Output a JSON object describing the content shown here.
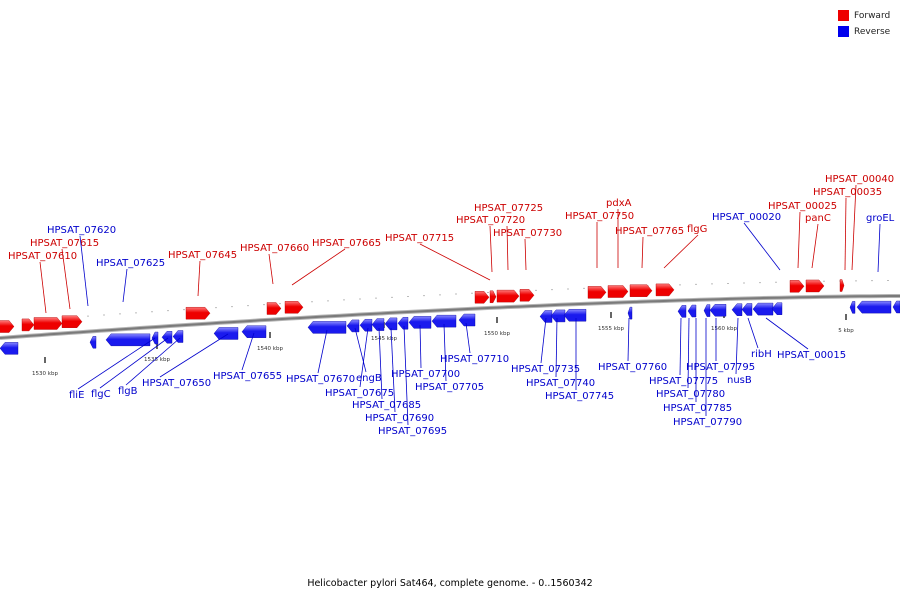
{
  "caption": "Helicobacter pylori Sat464, complete genome. - 0..1560342",
  "legend": [
    {
      "label": "Forward",
      "color": "#ee0000"
    },
    {
      "label": "Reverse",
      "color": "#0000ee"
    }
  ],
  "colors": {
    "forward": "#ee0000",
    "forward_light": "#ff7a7a",
    "reverse": "#1a1aee",
    "reverse_light": "#8c8cff",
    "backbone": "#7a7a7a",
    "forward_label": "#cc0000",
    "reverse_label": "#0000cc"
  },
  "scale_labels": [
    "1530 kbp",
    "1535 kbp",
    "1540 kbp",
    "1545 kbp",
    "1550 kbp",
    "1555 kbp",
    "1560 kbp",
    "5 kbp"
  ],
  "forward_genes": [
    "HPSAT_07610",
    "HPSAT_07615",
    "HPSAT_07645",
    "HPSAT_07660",
    "HPSAT_07665",
    "HPSAT_07715",
    "HPSAT_07725",
    "HPSAT_07720",
    "HPSAT_07730",
    "HPSAT_07750",
    "pdxA",
    "HPSAT_07765",
    "flgG",
    "HPSAT_00025",
    "panC",
    "HPSAT_00035",
    "HPSAT_00040"
  ],
  "reverse_genes": [
    "HPSAT_07620",
    "HPSAT_07625",
    "fliE",
    "flgC",
    "flgB",
    "HPSAT_07650",
    "HPSAT_07655",
    "HPSAT_07670",
    "engB",
    "HPSAT_07675",
    "HPSAT_07685",
    "HPSAT_07690",
    "HPSAT_07695",
    "HPSAT_07700",
    "HPSAT_07705",
    "HPSAT_07710",
    "HPSAT_07735",
    "HPSAT_07740",
    "HPSAT_07745",
    "HPSAT_07760",
    "HPSAT_07775",
    "HPSAT_07780",
    "HPSAT_07785",
    "HPSAT_07790",
    "HPSAT_07795",
    "nusB",
    "ribH",
    "HPSAT_00015",
    "HPSAT_00020",
    "groEL"
  ]
}
